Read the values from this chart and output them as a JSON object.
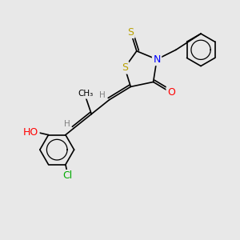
{
  "bg_color": "#e8e8e8",
  "atom_colors": {
    "S": "#b8a000",
    "N": "#0000ff",
    "O": "#ff0000",
    "Cl": "#00aa00",
    "H": "#808080"
  },
  "font_size_atom": 9,
  "font_size_small": 7.5,
  "line_width": 1.2
}
